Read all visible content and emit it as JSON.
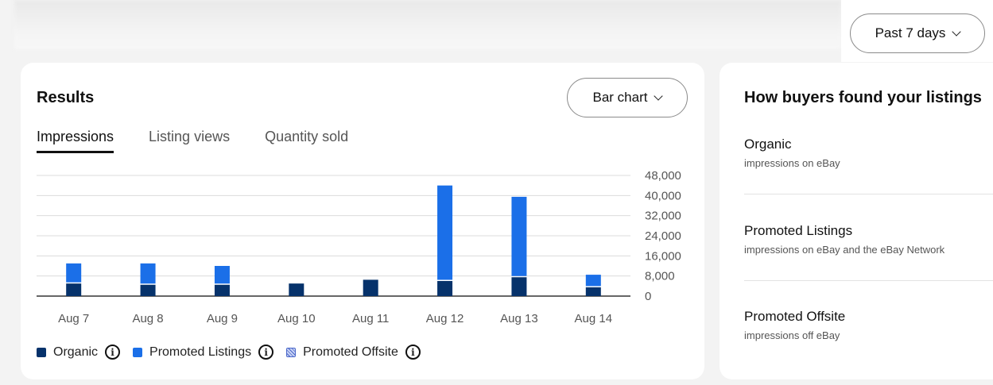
{
  "period_selector": {
    "label": "Past 7 days",
    "icon": "chevron-down-icon"
  },
  "results": {
    "title": "Results",
    "view_selector": {
      "label": "Bar chart",
      "icon": "chevron-down-icon"
    },
    "tabs": [
      {
        "label": "Impressions",
        "active": true
      },
      {
        "label": "Listing views",
        "active": false
      },
      {
        "label": "Quantity sold",
        "active": false
      }
    ],
    "legend": [
      {
        "label": "Organic",
        "color": "#06326b",
        "icon": "info-icon"
      },
      {
        "label": "Promoted Listings",
        "color": "#1b6fe8",
        "icon": "info-icon"
      },
      {
        "label": "Promoted Offsite",
        "color": "#4a67c9",
        "pattern": "hatched",
        "icon": "info-icon"
      }
    ]
  },
  "chart_data": {
    "type": "bar",
    "stacked": true,
    "categories": [
      "Aug 7",
      "Aug 8",
      "Aug 9",
      "Aug 10",
      "Aug 11",
      "Aug 12",
      "Aug 13",
      "Aug 14"
    ],
    "series": [
      {
        "name": "Organic",
        "color": "#06326b",
        "values": [
          5000,
          4500,
          4500,
          5000,
          6500,
          6000,
          7500,
          3500
        ]
      },
      {
        "name": "Promoted Listings",
        "color": "#1b6fe8",
        "values": [
          8000,
          8500,
          7500,
          0,
          0,
          38000,
          32000,
          5000
        ]
      },
      {
        "name": "Promoted Offsite",
        "color": "#4a67c9",
        "values": [
          0,
          0,
          0,
          0,
          0,
          0,
          0,
          0
        ]
      }
    ],
    "yticks": [
      "48,000",
      "40,000",
      "32,000",
      "24,000",
      "16,000",
      "8,000",
      "0"
    ],
    "ylim": [
      0,
      48000
    ],
    "axis_position": "right",
    "grid": true,
    "legend_position": "bottom"
  },
  "side_panel": {
    "title": "How buyers found your listings",
    "rows": [
      {
        "name": "Organic",
        "description": "impressions on eBay"
      },
      {
        "name": "Promoted Listings",
        "description": "impressions on eBay and the eBay Network"
      },
      {
        "name": "Promoted Offsite",
        "description": "impressions off eBay"
      }
    ]
  }
}
